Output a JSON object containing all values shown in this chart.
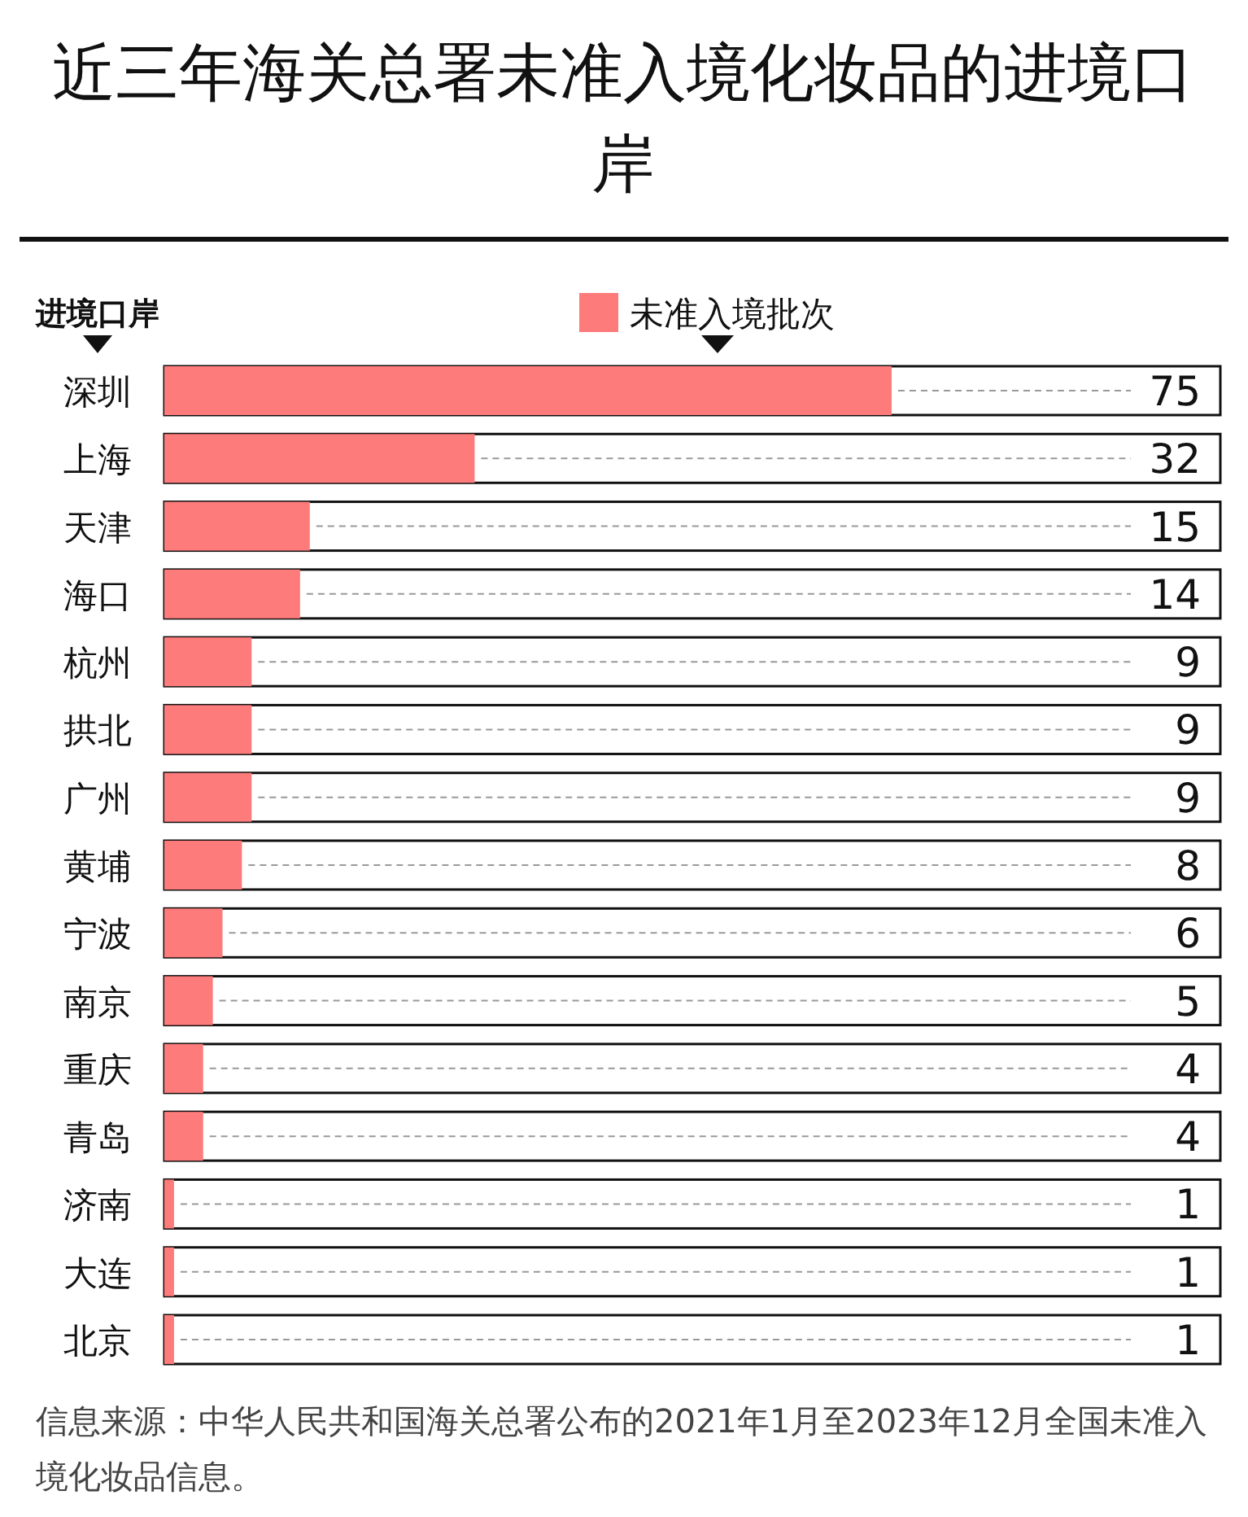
{
  "chart_data": {
    "type": "bar",
    "orientation": "horizontal",
    "title": "近三年海关总署未准入境化妆品的进境口岸",
    "ylabel": "进境口岸",
    "categories": [
      "深圳",
      "上海",
      "天津",
      "海口",
      "杭州",
      "拱北",
      "广州",
      "黄埔",
      "宁波",
      "南京",
      "重庆",
      "青岛",
      "济南",
      "大连",
      "北京"
    ],
    "series": [
      {
        "name": "未准入境批次",
        "color": "#fd7b7a",
        "values": [
          75,
          32,
          15,
          14,
          9,
          9,
          9,
          8,
          6,
          5,
          4,
          4,
          1,
          1,
          1
        ]
      }
    ],
    "data_labels": true,
    "legend": "top",
    "annotations": [
      "信息来源：中华人民共和国海关总署公布的2021年1月至2023年12月全国未准入境化妆品信息。"
    ]
  }
}
